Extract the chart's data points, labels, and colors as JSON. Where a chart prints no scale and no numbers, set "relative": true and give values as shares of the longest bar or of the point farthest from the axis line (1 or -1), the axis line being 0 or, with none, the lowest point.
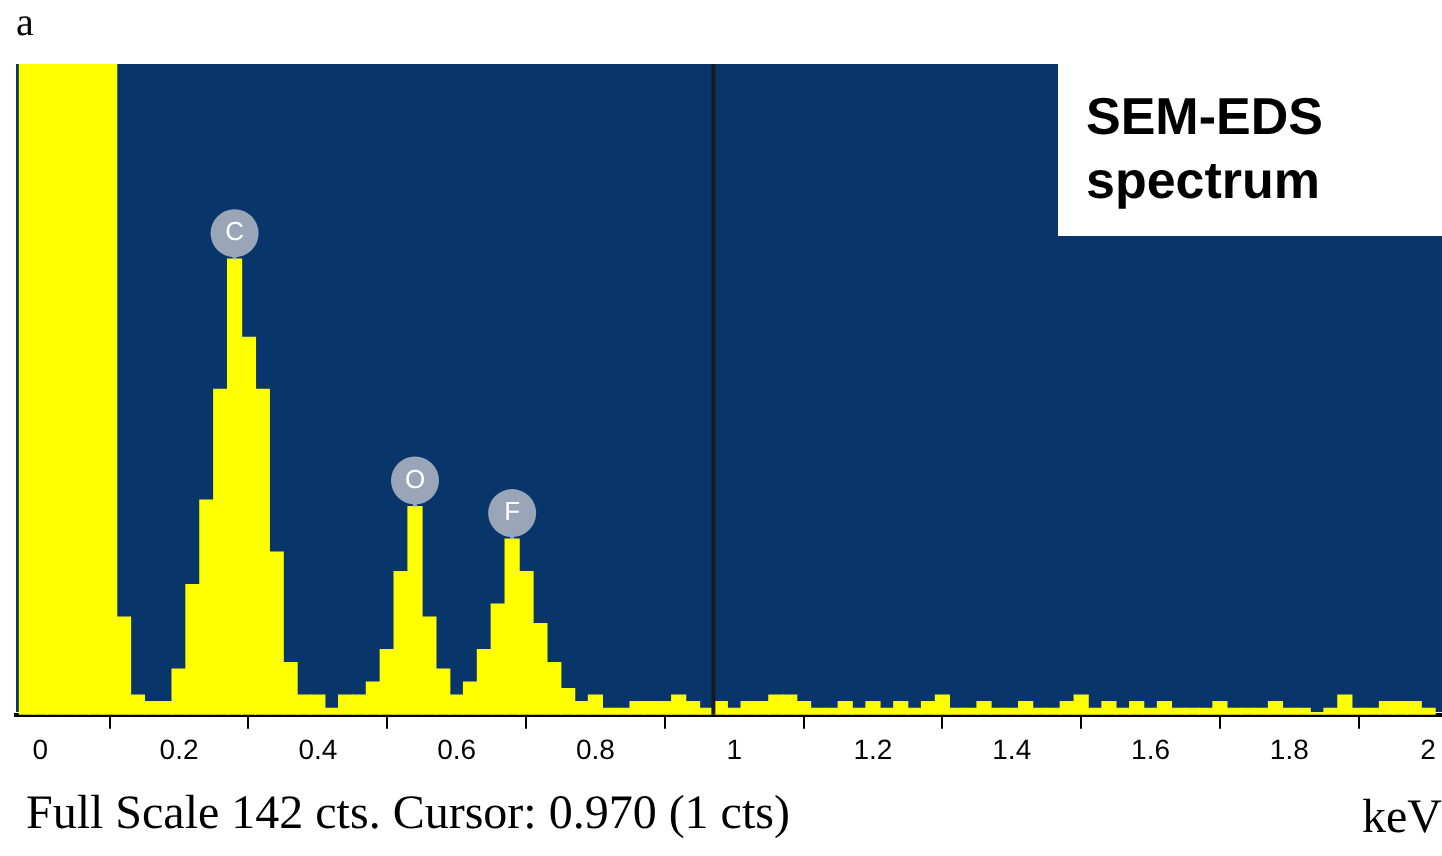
{
  "chart_data": {
    "type": "bar",
    "title": "a",
    "xlabel": "keV",
    "relative": true,
    "x": [
      -0.02,
      0,
      0.02,
      0.04,
      0.06,
      0.08,
      0.1,
      0.12,
      0.14,
      0.16,
      0.18,
      0.2,
      0.22,
      0.24,
      0.26,
      0.28,
      0.3,
      0.32,
      0.34,
      0.36,
      0.38,
      0.4,
      0.42,
      0.44,
      0.46,
      0.48,
      0.5,
      0.52,
      0.54,
      0.56,
      0.58,
      0.6,
      0.62,
      0.64,
      0.66,
      0.68,
      0.7,
      0.72,
      0.74,
      0.76,
      0.78,
      0.8,
      0.82,
      0.84,
      0.86,
      0.88,
      0.9,
      0.92,
      0.94,
      0.96,
      0.98,
      1,
      1.02,
      1.04,
      1.06,
      1.08,
      1.1,
      1.12,
      1.14,
      1.16,
      1.18,
      1.2,
      1.22,
      1.24,
      1.26,
      1.28,
      1.3,
      1.32,
      1.34,
      1.36,
      1.38,
      1.4,
      1.42,
      1.44,
      1.46,
      1.48,
      1.5,
      1.52,
      1.54,
      1.56,
      1.58,
      1.6,
      1.62,
      1.64,
      1.66,
      1.68,
      1.7,
      1.72,
      1.74,
      1.76,
      1.78,
      1.8,
      1.82,
      1.84,
      1.86,
      1.88,
      1.9,
      1.92,
      1.94,
      1.96,
      1.98,
      2
    ],
    "values": [
      1,
      1,
      1,
      1,
      1,
      1,
      1,
      0.15,
      0.03,
      0.02,
      0.02,
      0.07,
      0.2,
      0.33,
      0.5,
      0.7,
      0.58,
      0.5,
      0.25,
      0.08,
      0.03,
      0.03,
      0.01,
      0.03,
      0.03,
      0.05,
      0.1,
      0.22,
      0.32,
      0.15,
      0.07,
      0.03,
      0.05,
      0.1,
      0.17,
      0.27,
      0.22,
      0.14,
      0.08,
      0.04,
      0.02,
      0.03,
      0.01,
      0.01,
      0.02,
      0.02,
      0.02,
      0.03,
      0.02,
      0.01,
      0.02,
      0.01,
      0.02,
      0.02,
      0.03,
      0.03,
      0.02,
      0.01,
      0.01,
      0.02,
      0.01,
      0.02,
      0.01,
      0.02,
      0.01,
      0.02,
      0.03,
      0.01,
      0.01,
      0.02,
      0.01,
      0.01,
      0.02,
      0.01,
      0.01,
      0.02,
      0.03,
      0.01,
      0.02,
      0.01,
      0.02,
      0.01,
      0.02,
      0.01,
      0.01,
      0.01,
      0.02,
      0.01,
      0.01,
      0.01,
      0.02,
      0.01,
      0.01,
      0,
      0.01,
      0.03,
      0.01,
      0.01,
      0.02,
      0.02,
      0.02,
      0.01
    ],
    "color": "#ffff00",
    "xlim": [
      -0.035,
      2.02
    ],
    "xticks": [
      0,
      0.2,
      0.4,
      0.6,
      0.8,
      1,
      1.2,
      1.4,
      1.6,
      1.8,
      2
    ],
    "ref_lines": [
      {
        "axis": "x",
        "value": 0.97,
        "color": "#1a1a1a"
      }
    ],
    "annotations": [
      "SEM-EDS spectrum",
      "Full Scale 142 cts. Cursor: 0.970 (1 cts)",
      {
        "text": "C",
        "x": 0.28,
        "y": 0.7
      },
      {
        "text": "O",
        "x": 0.54,
        "y": 0.32
      },
      {
        "text": "F",
        "x": 0.68,
        "y": 0.27
      }
    ]
  }
}
